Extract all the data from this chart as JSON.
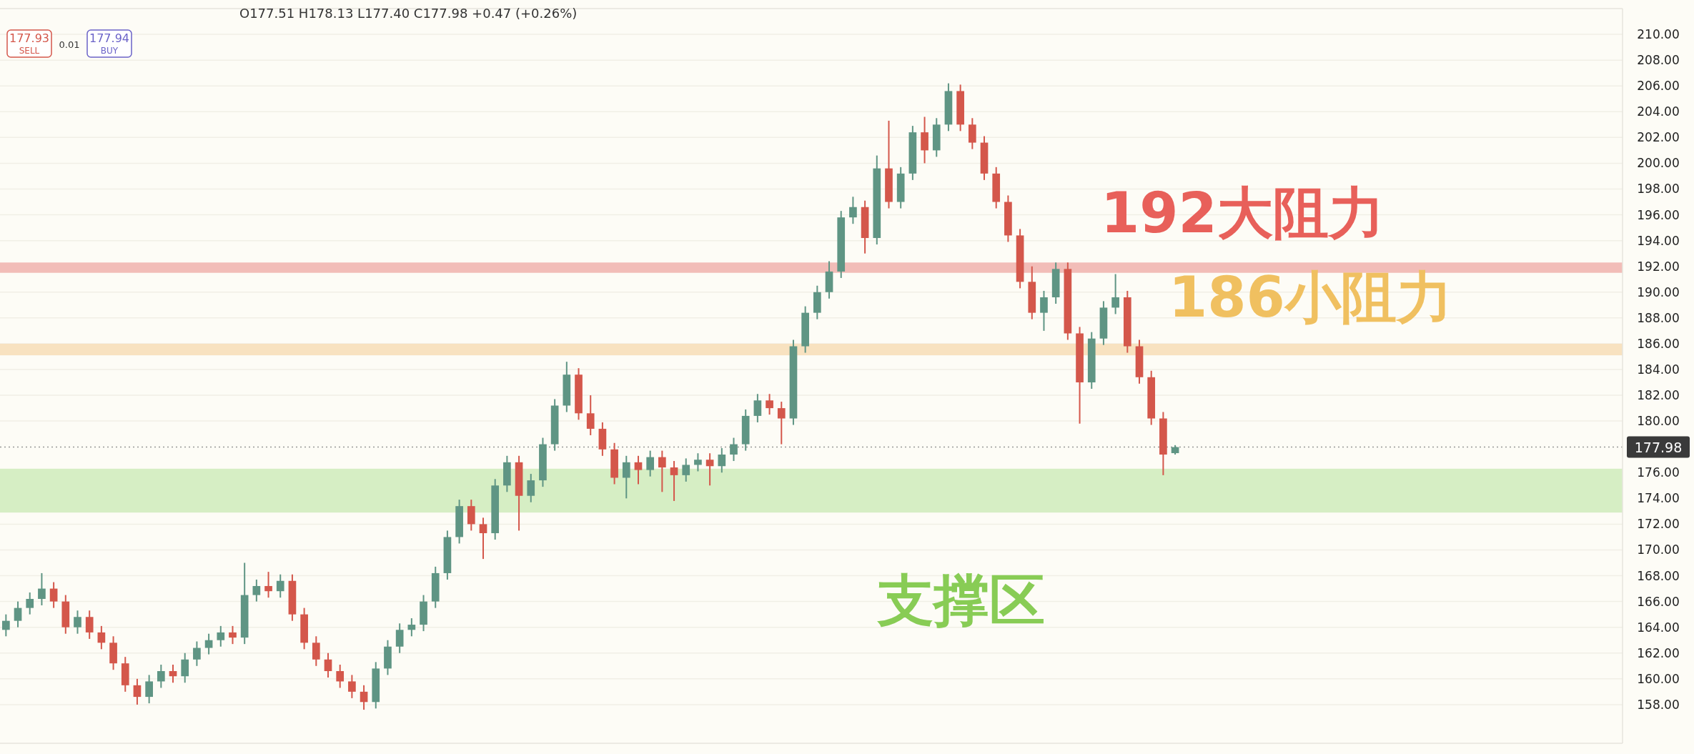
{
  "chart_data": {
    "type": "candlestick",
    "categories": [
      null,
      null,
      null,
      null,
      null,
      null,
      null,
      null,
      null,
      null,
      null,
      null,
      null,
      null,
      null,
      null,
      null,
      null,
      null,
      null,
      null,
      null,
      null,
      null,
      null,
      null,
      null,
      null,
      null,
      null,
      null,
      null,
      null,
      null,
      null,
      null,
      null,
      null,
      null,
      null,
      null,
      null,
      null,
      null,
      null,
      null,
      null,
      null,
      null,
      null,
      null,
      null,
      null,
      null,
      null,
      null,
      null,
      null,
      null,
      null,
      null,
      null,
      null,
      null,
      null,
      null,
      null,
      null,
      null,
      null,
      null,
      null,
      null,
      null,
      null,
      null,
      null,
      null,
      null,
      null,
      null,
      null,
      null,
      null,
      null,
      null,
      null,
      null,
      null,
      null,
      null,
      null,
      null,
      null,
      null,
      null,
      null,
      null,
      null,
      null,
      null,
      null,
      null,
      null,
      null,
      null,
      null,
      null,
      null,
      null,
      null,
      null,
      null,
      null,
      null,
      null,
      null,
      null,
      null,
      null,
      null,
      null,
      null,
      null,
      null,
      null,
      null,
      null,
      null,
      null,
      null,
      null,
      null,
      null,
      null,
      null
    ],
    "ohlc": [
      [
        163.8,
        165.0,
        163.3,
        164.5
      ],
      [
        164.5,
        166.0,
        164.0,
        165.5
      ],
      [
        165.5,
        166.7,
        165.0,
        166.2
      ],
      [
        166.2,
        168.2,
        165.7,
        167.0
      ],
      [
        167.0,
        167.5,
        165.5,
        166.0
      ],
      [
        166.0,
        166.5,
        163.5,
        164.0
      ],
      [
        164.0,
        165.3,
        163.5,
        164.8
      ],
      [
        164.8,
        165.3,
        163.1,
        163.6
      ],
      [
        163.6,
        164.1,
        162.3,
        162.8
      ],
      [
        162.8,
        163.3,
        160.7,
        161.2
      ],
      [
        161.2,
        161.7,
        159.0,
        159.5
      ],
      [
        159.5,
        160.0,
        158.0,
        158.6
      ],
      [
        158.6,
        160.3,
        158.1,
        159.8
      ],
      [
        159.8,
        161.1,
        159.3,
        160.6
      ],
      [
        160.6,
        161.1,
        159.7,
        160.2
      ],
      [
        160.2,
        162.0,
        159.7,
        161.5
      ],
      [
        161.5,
        162.9,
        161.0,
        162.4
      ],
      [
        162.4,
        163.5,
        161.9,
        163.0
      ],
      [
        163.0,
        164.1,
        162.5,
        163.6
      ],
      [
        163.6,
        164.1,
        162.7,
        163.2
      ],
      [
        163.2,
        169.0,
        162.7,
        166.5
      ],
      [
        166.5,
        167.7,
        166.0,
        167.2
      ],
      [
        167.2,
        168.3,
        166.3,
        166.8
      ],
      [
        166.8,
        168.1,
        166.3,
        167.6
      ],
      [
        167.6,
        168.1,
        164.5,
        165.0
      ],
      [
        165.0,
        165.5,
        162.3,
        162.8
      ],
      [
        162.8,
        163.3,
        161.0,
        161.5
      ],
      [
        161.5,
        162.0,
        160.1,
        160.6
      ],
      [
        160.6,
        161.1,
        159.3,
        159.8
      ],
      [
        159.8,
        160.3,
        158.5,
        159.0
      ],
      [
        159.0,
        159.5,
        157.6,
        158.2
      ],
      [
        158.2,
        161.3,
        157.7,
        160.8
      ],
      [
        160.8,
        163.0,
        160.3,
        162.5
      ],
      [
        162.5,
        164.3,
        162.0,
        163.8
      ],
      [
        163.8,
        164.7,
        163.3,
        164.2
      ],
      [
        164.2,
        166.5,
        163.7,
        166.0
      ],
      [
        166.0,
        168.7,
        165.5,
        168.2
      ],
      [
        168.2,
        171.5,
        167.7,
        171.0
      ],
      [
        171.0,
        173.9,
        170.5,
        173.4
      ],
      [
        173.4,
        173.9,
        171.5,
        172.0
      ],
      [
        172.0,
        172.5,
        169.3,
        171.3
      ],
      [
        171.3,
        175.5,
        170.8,
        175.0
      ],
      [
        175.0,
        177.3,
        174.5,
        176.8
      ],
      [
        176.8,
        177.3,
        171.5,
        174.2
      ],
      [
        174.2,
        175.9,
        173.7,
        175.4
      ],
      [
        175.4,
        178.7,
        174.9,
        178.2
      ],
      [
        178.2,
        181.7,
        177.7,
        181.2
      ],
      [
        181.2,
        184.6,
        180.7,
        183.6
      ],
      [
        183.6,
        184.1,
        180.1,
        180.6
      ],
      [
        180.6,
        182.0,
        178.9,
        179.4
      ],
      [
        179.4,
        179.9,
        177.3,
        177.8
      ],
      [
        177.8,
        178.3,
        175.1,
        175.6
      ],
      [
        175.6,
        177.3,
        174.0,
        176.8
      ],
      [
        176.8,
        177.3,
        175.1,
        176.2
      ],
      [
        176.2,
        177.7,
        175.7,
        177.2
      ],
      [
        177.2,
        177.7,
        174.5,
        176.4
      ],
      [
        176.4,
        176.9,
        173.8,
        175.8
      ],
      [
        175.8,
        177.1,
        175.3,
        176.6
      ],
      [
        176.6,
        177.5,
        176.1,
        177.0
      ],
      [
        177.0,
        177.5,
        175.0,
        176.5
      ],
      [
        176.5,
        177.9,
        176.0,
        177.4
      ],
      [
        177.4,
        178.7,
        176.9,
        178.2
      ],
      [
        178.2,
        180.9,
        177.7,
        180.4
      ],
      [
        180.4,
        182.1,
        179.9,
        181.6
      ],
      [
        181.6,
        182.1,
        180.5,
        181.0
      ],
      [
        181.0,
        181.5,
        178.2,
        180.2
      ],
      [
        180.2,
        186.3,
        179.7,
        185.8
      ],
      [
        185.8,
        188.9,
        185.3,
        188.4
      ],
      [
        188.4,
        190.5,
        187.9,
        190.0
      ],
      [
        190.0,
        192.4,
        189.5,
        191.6
      ],
      [
        191.6,
        196.3,
        191.1,
        195.8
      ],
      [
        195.8,
        197.4,
        195.3,
        196.6
      ],
      [
        196.6,
        197.1,
        193.0,
        194.2
      ],
      [
        194.2,
        200.6,
        193.7,
        199.6
      ],
      [
        199.6,
        203.3,
        196.5,
        197.0
      ],
      [
        197.0,
        199.7,
        196.5,
        199.2
      ],
      [
        199.2,
        202.9,
        198.7,
        202.4
      ],
      [
        202.4,
        203.6,
        200.0,
        201.0
      ],
      [
        201.0,
        203.5,
        200.5,
        203.0
      ],
      [
        203.0,
        206.2,
        202.5,
        205.6
      ],
      [
        205.6,
        206.1,
        202.5,
        203.0
      ],
      [
        203.0,
        203.5,
        201.1,
        201.6
      ],
      [
        201.6,
        202.1,
        198.7,
        199.2
      ],
      [
        199.2,
        199.7,
        196.5,
        197.0
      ],
      [
        197.0,
        197.5,
        193.9,
        194.4
      ],
      [
        194.4,
        194.9,
        190.3,
        190.8
      ],
      [
        190.8,
        192.0,
        187.9,
        188.4
      ],
      [
        188.4,
        190.1,
        187.0,
        189.6
      ],
      [
        189.6,
        192.3,
        189.1,
        191.8
      ],
      [
        191.8,
        192.3,
        186.3,
        186.8
      ],
      [
        186.8,
        187.3,
        179.8,
        183.0
      ],
      [
        183.0,
        186.9,
        182.5,
        186.4
      ],
      [
        186.4,
        189.3,
        185.9,
        188.8
      ],
      [
        188.8,
        191.4,
        188.3,
        189.6
      ],
      [
        189.6,
        190.1,
        185.3,
        185.8
      ],
      [
        185.8,
        186.3,
        182.9,
        183.4
      ],
      [
        183.4,
        183.9,
        179.7,
        180.2
      ],
      [
        180.2,
        180.7,
        175.8,
        177.4
      ],
      [
        177.51,
        178.13,
        177.4,
        177.98
      ],
      null,
      null,
      null,
      null,
      null,
      null,
      null,
      null,
      null,
      null,
      null,
      null,
      null,
      null,
      null,
      null,
      null,
      null,
      null,
      null,
      null,
      null,
      null,
      null,
      null,
      null,
      null,
      null,
      null,
      null,
      null,
      null,
      null,
      null,
      null,
      null,
      null
    ],
    "colors": [
      "#5f9584",
      "#5f9584",
      "#5f9584",
      "#5f9584",
      "#d4574b",
      "#d4574b",
      "#5f9584",
      "#d4574b",
      "#d4574b",
      "#d4574b",
      "#d4574b",
      "#d4574b",
      "#5f9584",
      "#5f9584",
      "#d4574b",
      "#5f9584",
      "#5f9584",
      "#5f9584",
      "#5f9584",
      "#d4574b",
      "#5f9584",
      "#5f9584",
      "#d4574b",
      "#5f9584",
      "#d4574b",
      "#d4574b",
      "#d4574b",
      "#d4574b",
      "#d4574b",
      "#d4574b",
      "#d4574b",
      "#5f9584",
      "#5f9584",
      "#5f9584",
      "#5f9584",
      "#5f9584",
      "#5f9584",
      "#5f9584",
      "#5f9584",
      "#d4574b",
      "#d4574b",
      "#5f9584",
      "#5f9584",
      "#d4574b",
      "#5f9584",
      "#5f9584",
      "#5f9584",
      "#5f9584",
      "#d4574b",
      "#d4574b",
      "#d4574b",
      "#d4574b",
      "#5f9584",
      "#d4574b",
      "#5f9584",
      "#d4574b",
      "#d4574b",
      "#5f9584",
      "#5f9584",
      "#d4574b",
      "#5f9584",
      "#5f9584",
      "#5f9584",
      "#5f9584",
      "#d4574b",
      "#d4574b",
      "#5f9584",
      "#5f9584",
      "#5f9584",
      "#5f9584",
      "#5f9584",
      "#5f9584",
      "#d4574b",
      "#5f9584",
      "#d4574b",
      "#5f9584",
      "#5f9584",
      "#d4574b",
      "#5f9584",
      "#5f9584",
      "#d4574b",
      "#d4574b",
      "#d4574b",
      "#d4574b",
      "#d4574b",
      "#d4574b",
      "#d4574b",
      "#5f9584",
      "#5f9584",
      "#d4574b",
      "#d4574b",
      "#5f9584",
      "#5f9584",
      "#5f9584",
      "#d4574b",
      "#d4574b",
      "#d4574b",
      "#d4574b",
      "#5f9584",
      null,
      null,
      null,
      null,
      null,
      null,
      null,
      null,
      null,
      null,
      null,
      null,
      null,
      null,
      null,
      null,
      null,
      null,
      null,
      null,
      null,
      null,
      null,
      null,
      null,
      null,
      null,
      null,
      null,
      null,
      null,
      null,
      null,
      null,
      null,
      null,
      null
    ],
    "ylim": [
      155,
      212
    ],
    "yticks": [
      {
        "value": 158,
        "label": "158.00"
      },
      {
        "value": 160,
        "label": "160.00"
      },
      {
        "value": 162,
        "label": "162.00"
      },
      {
        "value": 164,
        "label": "164.00"
      },
      {
        "value": 166,
        "label": "166.00"
      },
      {
        "value": 168,
        "label": "168.00"
      },
      {
        "value": 170,
        "label": "170.00"
      },
      {
        "value": 172,
        "label": "172.00"
      },
      {
        "value": 174,
        "label": "174.00"
      },
      {
        "value": 176,
        "label": "176.00"
      },
      {
        "value": 180,
        "label": "180.00"
      },
      {
        "value": 182,
        "label": "182.00"
      },
      {
        "value": 184,
        "label": "184.00"
      },
      {
        "value": 186,
        "label": "186.00"
      },
      {
        "value": 188,
        "label": "188.00"
      },
      {
        "value": 190,
        "label": "190.00"
      },
      {
        "value": 192,
        "label": "192.00"
      },
      {
        "value": 194,
        "label": "194.00"
      },
      {
        "value": 196,
        "label": "196.00"
      },
      {
        "value": 198,
        "label": "198.00"
      },
      {
        "value": 200,
        "label": "200.00"
      },
      {
        "value": 202,
        "label": "202.00"
      },
      {
        "value": 204,
        "label": "204.00"
      },
      {
        "value": 206,
        "label": "206.00"
      },
      {
        "value": 208,
        "label": "208.00"
      },
      {
        "value": 210,
        "label": "210.00"
      }
    ],
    "grid": "y",
    "bands": [
      {
        "axis": "y",
        "from": 191.5,
        "to": 192.3,
        "label": "192大阻力",
        "color": "#f2bdb8"
      },
      {
        "axis": "y",
        "from": 185.1,
        "to": 186.0,
        "label": "186小阻力",
        "color": "#f8e2c0"
      },
      {
        "axis": "y",
        "from": 172.9,
        "to": 176.3,
        "label": "支撑区",
        "color": "#d6eec4"
      }
    ],
    "ref_lines": [
      {
        "axis": "y",
        "value": 177.98,
        "label": "177.98",
        "color": "#999999",
        "line_style": "dotted"
      }
    ],
    "annotations": [
      "O177.51 H178.13 L177.40 C177.98 +0.47 (+0.26%)",
      "177.93",
      "SELL",
      "0.01",
      "177.94",
      "BUY"
    ]
  }
}
